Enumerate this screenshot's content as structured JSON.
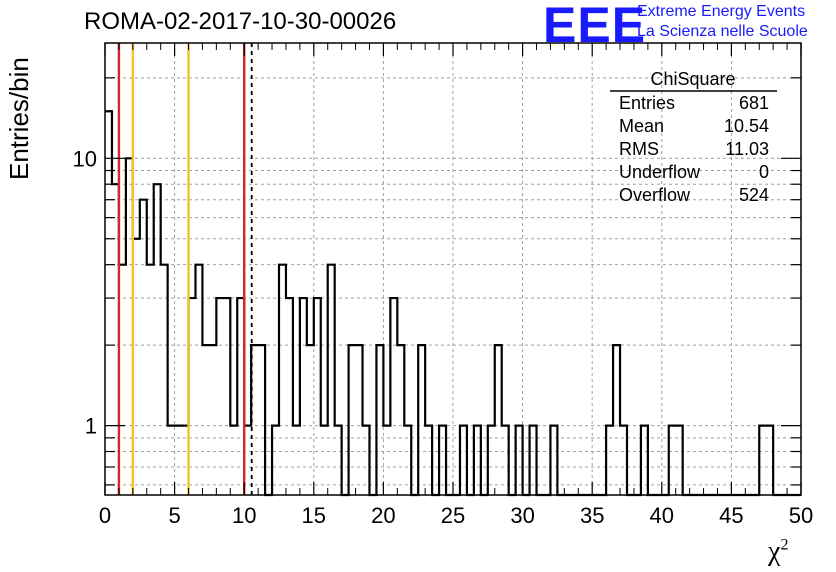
{
  "header": {
    "title": "ROMA-02-2017-10-30-00026",
    "logo_text": "EEE",
    "logo_line1": "Extreme Energy Events",
    "logo_line2": "La Scienza nelle Scuole"
  },
  "stats": {
    "name": "ChiSquare",
    "rows": [
      {
        "label": "Entries",
        "value": "681"
      },
      {
        "label": "Mean",
        "value": "10.54"
      },
      {
        "label": "RMS",
        "value": "11.03"
      },
      {
        "label": "Underflow",
        "value": "0"
      },
      {
        "label": "Overflow",
        "value": "524"
      }
    ]
  },
  "colors": {
    "red_line": "#d62728",
    "yellow_line": "#f2c12e",
    "histogram": "#000000",
    "logo": "#1a1aff"
  },
  "chart_data": {
    "type": "histogram",
    "title": "ROMA-02-2017-10-30-00026",
    "xlabel": "χ",
    "xlabel_superscript": "2",
    "ylabel": "Entries/bin",
    "y_scale": "log",
    "grid": true,
    "legend_placement": "top-right",
    "xlim": [
      0,
      50
    ],
    "ylim": [
      0.55,
      27
    ],
    "bin_width": 0.5,
    "x_ticks": [
      0,
      5,
      10,
      15,
      20,
      25,
      30,
      35,
      40,
      45,
      50
    ],
    "y_tick_labels": [
      {
        "value": 1,
        "label": "1"
      },
      {
        "value": 10,
        "label": "10"
      }
    ],
    "bin_values": [
      15,
      8,
      4,
      10,
      5,
      7,
      4,
      8,
      4,
      1,
      1,
      1,
      3,
      4,
      2,
      2,
      3,
      3,
      1,
      3,
      1,
      2,
      2,
      0,
      1,
      4,
      3,
      1,
      3,
      2,
      3,
      1,
      4,
      1,
      0,
      2,
      2,
      1,
      0,
      2,
      1,
      3,
      2,
      1,
      0,
      2,
      1,
      0,
      1,
      0,
      0,
      1,
      0,
      1,
      0,
      1,
      2,
      1,
      0,
      1,
      0,
      1,
      0,
      0,
      1,
      0,
      0,
      0,
      0,
      0,
      0,
      0,
      1,
      2,
      1,
      0,
      0,
      1,
      0,
      0,
      0,
      1,
      1,
      0,
      0,
      0,
      0,
      0,
      0,
      0,
      0,
      0,
      0,
      0,
      1,
      1,
      0,
      0,
      0,
      0
    ],
    "vertical_lines": [
      {
        "x": 1,
        "color": "red"
      },
      {
        "x": 2,
        "color": "yellow"
      },
      {
        "x": 6,
        "color": "yellow"
      },
      {
        "x": 10,
        "color": "red"
      },
      {
        "x": 10.54,
        "color": "black",
        "style": "dashed"
      }
    ]
  }
}
